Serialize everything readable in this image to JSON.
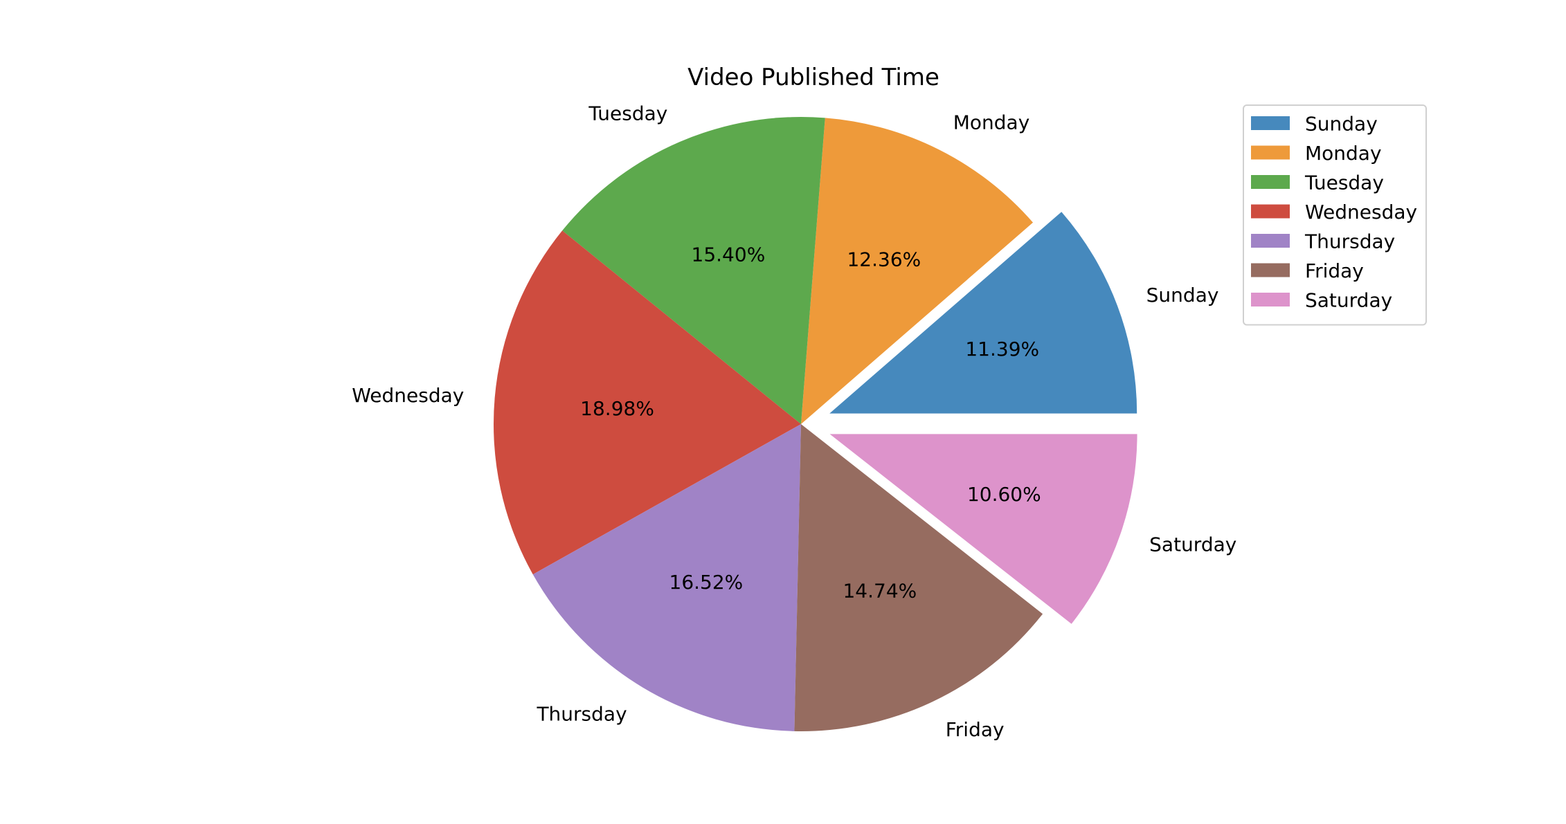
{
  "chart_data": {
    "type": "pie",
    "title": "Video Published Time",
    "categories": [
      "Sunday",
      "Monday",
      "Tuesday",
      "Wednesday",
      "Thursday",
      "Friday",
      "Saturday"
    ],
    "values": [
      11.39,
      12.36,
      15.4,
      18.98,
      16.52,
      14.74,
      10.6
    ],
    "value_labels": [
      "11.39%",
      "12.36%",
      "15.40%",
      "18.98%",
      "16.52%",
      "14.74%",
      "10.60%"
    ],
    "colors": [
      "#4689bd",
      "#ee9a3a",
      "#5da94d",
      "#ce4c3f",
      "#a083c6",
      "#966c60",
      "#dd93cb"
    ],
    "exploded": [
      "Sunday",
      "Saturday"
    ],
    "start_angle_deg": 0,
    "direction": "counterclockwise",
    "legend": {
      "placement": "top-right",
      "entries": [
        "Sunday",
        "Monday",
        "Tuesday",
        "Wednesday",
        "Thursday",
        "Friday",
        "Saturday"
      ]
    }
  }
}
